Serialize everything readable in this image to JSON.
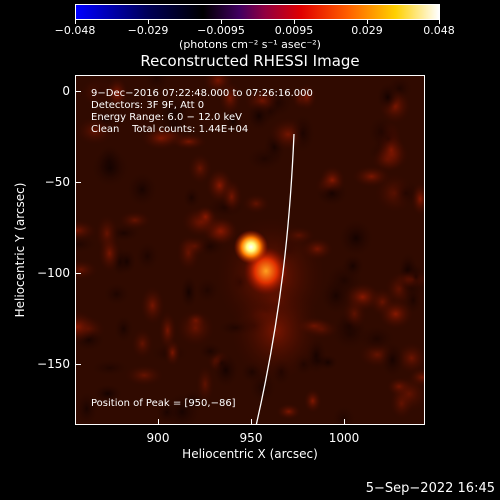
{
  "colorbar": {
    "ticks": [
      "−0.048",
      "−0.029",
      "−0.0095",
      "0.0095",
      "0.029",
      "0.048"
    ],
    "units": "(photons cm⁻² s⁻¹ asec⁻²)",
    "colors": [
      "#0000ff",
      "#000000",
      "#ff0000",
      "#ffff00",
      "#ffffff"
    ]
  },
  "title": "Reconstructed RHESSI Image",
  "annotations": {
    "line1": "9−Dec−2016 07:22:48.000 to 07:26:16.000",
    "line2": "Detectors: 3F 9F, Att 0",
    "line3": "Energy Range: 6.0 − 12.0 keV",
    "line4": "Clean    Total counts: 1.44E+04",
    "peak": "Position of Peak = [950,−86]"
  },
  "axes": {
    "xlabel": "Heliocentric X (arcsec)",
    "ylabel": "Heliocentric Y (arcsec)",
    "xticks": [
      "900",
      "950",
      "1000"
    ],
    "yticks": [
      "0",
      "−50",
      "−100",
      "−150"
    ]
  },
  "footer": "5−Sep−2022 16:45"
}
